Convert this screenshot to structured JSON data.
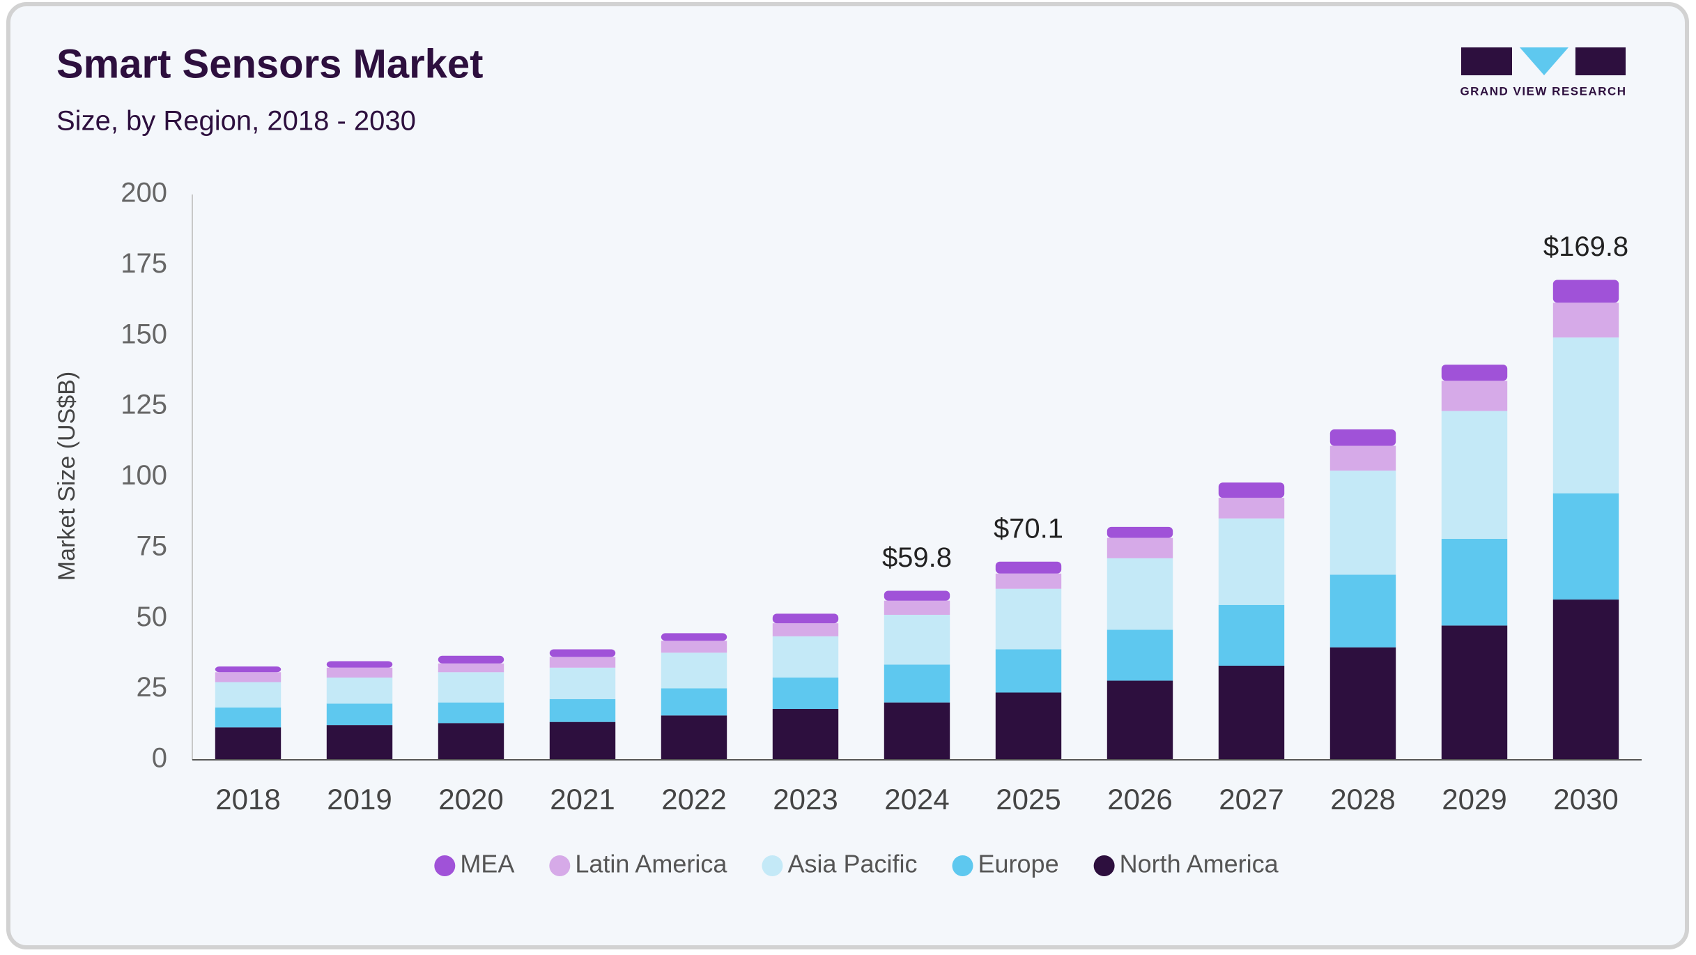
{
  "logo": "GRAND VIEW RESEARCH",
  "chart_data": {
    "type": "stacked-bar",
    "title": "Smart Sensors Market",
    "subtitle": "Size, by Region, 2018 - 2030",
    "y_label": "Market Size (US$B)",
    "categories": [
      "2018",
      "2019",
      "2020",
      "2021",
      "2022",
      "2023",
      "2024",
      "2025",
      "2026",
      "2027",
      "2028",
      "2029",
      "2030"
    ],
    "series": [
      {
        "name": "MEA",
        "color": "#a052d8",
        "values": [
          2.0,
          2.3,
          2.7,
          2.7,
          2.7,
          3.4,
          3.5,
          4.2,
          3.9,
          5.4,
          5.8,
          5.7,
          8.1
        ]
      },
      {
        "name": "Latin America",
        "color": "#d6aae8",
        "values": [
          3.5,
          3.5,
          3.1,
          3.8,
          4.2,
          4.6,
          5.0,
          5.4,
          7.2,
          7.3,
          8.8,
          10.7,
          12.3
        ]
      },
      {
        "name": "Asia Pacific",
        "color": "#c4e9f7",
        "values": [
          9.0,
          9.2,
          10.7,
          11.1,
          12.6,
          14.6,
          17.6,
          21.4,
          25.3,
          30.6,
          36.8,
          45.2,
          55.1
        ]
      },
      {
        "name": "Europe",
        "color": "#5ec8ef",
        "values": [
          7.0,
          7.6,
          7.3,
          8.1,
          9.6,
          11.1,
          13.4,
          15.3,
          18.0,
          21.5,
          25.7,
          30.7,
          37.6
        ]
      },
      {
        "name": "North America",
        "color": "#2d0f3e",
        "values": [
          11.5,
          12.3,
          13.0,
          13.4,
          15.7,
          18.0,
          20.3,
          23.8,
          28.0,
          33.3,
          39.8,
          47.5,
          56.7
        ]
      }
    ],
    "annotations": [
      {
        "x": "2024",
        "value": 59.8,
        "label": "$59.8"
      },
      {
        "x": "2025",
        "value": 70.1,
        "label": "$70.1"
      },
      {
        "x": "2030",
        "value": 169.8,
        "label": "$169.8"
      }
    ],
    "ylim": [
      0,
      200
    ],
    "yticks": [
      0,
      25,
      50,
      75,
      100,
      125,
      150,
      175,
      200
    ],
    "grid": false,
    "legend": "bottom"
  }
}
